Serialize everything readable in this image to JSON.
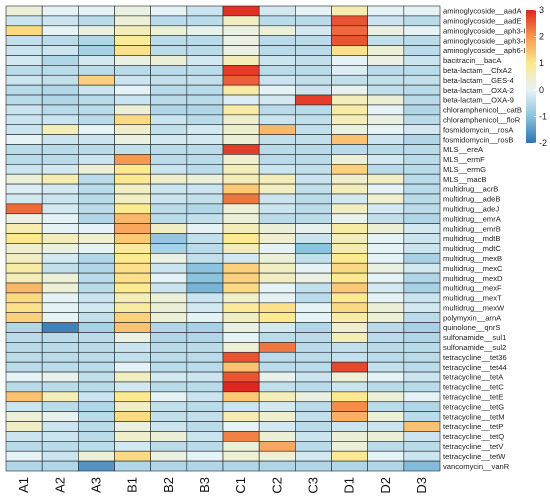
{
  "chart_data": {
    "type": "heatmap",
    "title": "",
    "xlabel": "",
    "ylabel": "",
    "columns": [
      "A1",
      "A2",
      "A3",
      "B1",
      "B2",
      "B3",
      "C1",
      "C2",
      "C3",
      "D1",
      "D2",
      "D3"
    ],
    "rows": [
      "aminoglycoside__aadA",
      "aminoglycoside__aadE",
      "aminoglycoside__aph3-I",
      "aminoglycoside__aph3-III",
      "aminoglycoside__aph6-I",
      "bacitracin__bacA",
      "beta-lactam__CfxA2",
      "beta-lactam__GES-4",
      "beta-lactam__OXA-2",
      "beta-lactam__OXA-9",
      "chloramphenicol__catB",
      "chloramphenicol__floR",
      "fosmidomycin__rosA",
      "fosmidomycin__rosB",
      "MLS__ereA",
      "MLS__ermF",
      "MLS__ermG",
      "MLS__macB",
      "multidrug__acrB",
      "multidrug__adeB",
      "multidrug__adeJ",
      "multidrug__emrA",
      "multidrug__emrB",
      "multidrug__mdtB",
      "multidrug__mdtC",
      "multidrug__mexB",
      "multidrug__mexC",
      "multidrug__mexD",
      "multidrug__mexF",
      "multidrug__mexT",
      "multidrug__mexW",
      "polymyxin__arnA",
      "quinolone__qnrS",
      "sulfonamide__sul1",
      "sulfonamide__sul2",
      "tetracycline__tet36",
      "tetracycline__tet44",
      "tetracycline__tetA",
      "tetracycline__tetC",
      "tetracycline__tetE",
      "tetracycline__tetG",
      "tetracycline__tetM",
      "tetracycline__tetP",
      "tetracycline__tetQ",
      "tetracycline__tetV",
      "tetracycline__tetW",
      "vancomycin__vanR"
    ],
    "values": [
      [
        0.3,
        0.0,
        0.0,
        0.2,
        0.0,
        -0.3,
        2.9,
        -0.2,
        0.0,
        0.7,
        0.0,
        0.0
      ],
      [
        -0.3,
        -0.3,
        -0.5,
        0.3,
        -0.5,
        -0.5,
        0.5,
        -0.5,
        -0.5,
        2.6,
        -0.3,
        -0.5
      ],
      [
        1.2,
        0.0,
        0.2,
        0.6,
        0.3,
        0.1,
        0.2,
        0.3,
        -0.2,
        2.4,
        0.2,
        0.0
      ],
      [
        -0.4,
        -0.5,
        -0.6,
        0.9,
        -0.5,
        -0.5,
        0.2,
        -0.5,
        -0.5,
        2.6,
        -0.4,
        -0.5
      ],
      [
        -0.3,
        -0.3,
        -0.7,
        1.1,
        -0.5,
        -0.5,
        0.2,
        -0.5,
        -0.5,
        1.1,
        0.3,
        -0.5
      ],
      [
        -0.2,
        -0.6,
        -0.2,
        0.2,
        0.3,
        -0.2,
        0.6,
        -0.3,
        -0.4,
        0.0,
        0.2,
        -0.3
      ],
      [
        -0.5,
        -0.5,
        -0.5,
        -0.5,
        -0.5,
        -0.5,
        2.8,
        -0.5,
        -0.5,
        -0.1,
        -0.5,
        -0.5
      ],
      [
        -0.3,
        -0.4,
        1.3,
        -0.3,
        -0.4,
        -0.4,
        2.5,
        -0.3,
        -0.4,
        -0.4,
        -0.4,
        -0.4
      ],
      [
        -0.5,
        -0.6,
        -0.3,
        0.0,
        -0.5,
        -0.5,
        0.8,
        0.0,
        -0.3,
        0.1,
        -0.4,
        -0.5
      ],
      [
        -0.5,
        -0.6,
        -0.5,
        -0.3,
        -0.5,
        -0.5,
        -0.1,
        -0.2,
        2.8,
        0.6,
        0.3,
        -0.5
      ],
      [
        -0.3,
        -0.5,
        -0.5,
        0.3,
        -0.6,
        -0.6,
        0.8,
        -0.5,
        -0.5,
        0.8,
        0.0,
        -0.6
      ],
      [
        -0.3,
        -0.3,
        -0.5,
        1.2,
        -0.3,
        -0.5,
        0.4,
        -0.3,
        -0.4,
        0.6,
        0.2,
        -0.5
      ],
      [
        -0.3,
        0.6,
        0.0,
        0.4,
        -0.4,
        -0.2,
        0.4,
        1.6,
        -0.4,
        0.2,
        0.0,
        -0.2
      ],
      [
        0.0,
        -0.3,
        -0.3,
        0.2,
        -0.2,
        -0.2,
        0.3,
        -0.4,
        -0.4,
        1.5,
        -0.3,
        -0.6
      ],
      [
        -0.5,
        -0.5,
        -0.5,
        -0.4,
        -0.5,
        -0.5,
        2.8,
        -0.5,
        -0.5,
        -0.5,
        -0.5,
        -0.5
      ],
      [
        -0.5,
        -0.5,
        -0.3,
        2.0,
        -0.5,
        -0.5,
        0.4,
        -0.5,
        -0.5,
        0.3,
        -0.2,
        -0.5
      ],
      [
        -0.3,
        -0.2,
        0.3,
        1.0,
        -0.3,
        -0.5,
        0.6,
        -0.3,
        -0.4,
        1.3,
        -0.5,
        -0.5
      ],
      [
        0.3,
        0.7,
        -0.5,
        1.0,
        0.4,
        0.3,
        0.6,
        0.6,
        -0.3,
        0.4,
        0.5,
        -0.5
      ],
      [
        -0.1,
        -0.2,
        -0.5,
        0.5,
        -0.3,
        -0.3,
        1.4,
        0.5,
        -0.4,
        0.6,
        0.0,
        -0.5
      ],
      [
        -0.2,
        -0.3,
        -0.5,
        0.5,
        -0.3,
        -0.4,
        2.3,
        -0.3,
        -0.5,
        -0.2,
        0.4,
        -0.5
      ],
      [
        2.4,
        -0.2,
        -0.5,
        1.0,
        -0.5,
        -0.6,
        0.3,
        -0.3,
        -0.5,
        0.5,
        -0.2,
        -0.5
      ],
      [
        0.2,
        0.0,
        -0.6,
        1.6,
        -0.5,
        -0.4,
        0.3,
        -0.5,
        -0.5,
        0.1,
        -0.4,
        -0.6
      ],
      [
        0.7,
        0.0,
        0.0,
        1.8,
        0.5,
        0.0,
        0.6,
        0.3,
        0.1,
        0.8,
        0.3,
        -0.2
      ],
      [
        1.0,
        0.6,
        0.4,
        1.4,
        -0.9,
        -0.4,
        1.0,
        0.4,
        -0.3,
        0.6,
        0.0,
        -0.3
      ],
      [
        0.4,
        0.2,
        0.0,
        0.9,
        -0.7,
        -0.5,
        0.6,
        0.0,
        -1.0,
        0.7,
        0.0,
        -0.3
      ],
      [
        0.5,
        -0.2,
        -0.6,
        1.0,
        0.2,
        -0.4,
        -0.2,
        0.3,
        -0.4,
        1.0,
        0.0,
        -0.7
      ],
      [
        0.8,
        -0.4,
        -0.6,
        1.1,
        -0.3,
        -1.0,
        1.3,
        0.5,
        0.0,
        1.2,
        0.2,
        -0.2
      ],
      [
        0.6,
        0.3,
        -0.5,
        1.1,
        0.0,
        -1.0,
        1.3,
        0.5,
        0.2,
        1.0,
        0.0,
        -0.6
      ],
      [
        1.6,
        0.3,
        -0.5,
        1.0,
        -0.3,
        -1.2,
        1.2,
        0.0,
        -0.4,
        1.4,
        -0.2,
        -0.7
      ],
      [
        1.2,
        0.0,
        -0.3,
        0.6,
        0.3,
        -0.3,
        0.4,
        0.0,
        -0.5,
        1.0,
        0.0,
        -0.3
      ],
      [
        1.1,
        0.0,
        -0.2,
        0.8,
        0.3,
        -0.2,
        0.9,
        1.1,
        0.0,
        1.2,
        0.3,
        -0.2
      ],
      [
        1.3,
        0.0,
        -0.4,
        1.3,
        0.3,
        0.0,
        0.5,
        1.0,
        0.0,
        0.8,
        0.3,
        -0.5
      ],
      [
        -0.6,
        -1.8,
        -0.7,
        1.5,
        -0.6,
        -0.7,
        0.2,
        -0.2,
        -0.6,
        0.4,
        -0.5,
        -0.7
      ],
      [
        -0.5,
        -0.5,
        -0.5,
        0.2,
        -0.6,
        -0.6,
        0.0,
        -0.5,
        -0.5,
        0.6,
        -0.5,
        -0.6
      ],
      [
        -0.5,
        -0.5,
        -0.5,
        -0.3,
        -0.5,
        -0.5,
        0.3,
        2.3,
        -0.5,
        -0.4,
        -0.5,
        -0.5
      ],
      [
        -0.5,
        -0.5,
        -0.5,
        -0.4,
        -0.5,
        -0.5,
        2.6,
        -0.5,
        -0.5,
        -0.4,
        -0.5,
        -0.5
      ],
      [
        -0.5,
        -0.5,
        -0.5,
        0.0,
        -0.5,
        -0.5,
        1.5,
        -0.5,
        -0.5,
        2.7,
        -0.4,
        -0.5
      ],
      [
        0.0,
        0.1,
        -0.4,
        0.5,
        -0.2,
        -0.3,
        2.6,
        0.1,
        -0.3,
        0.3,
        0.0,
        -0.3
      ],
      [
        -0.5,
        -0.5,
        -0.5,
        -0.2,
        -0.5,
        -0.5,
        3.0,
        -0.4,
        -0.5,
        -0.3,
        -0.5,
        -0.5
      ],
      [
        1.5,
        0.6,
        -0.3,
        1.0,
        0.0,
        -0.3,
        1.4,
        0.6,
        0.2,
        1.0,
        0.3,
        0.0
      ],
      [
        -0.3,
        -0.5,
        -0.6,
        0.5,
        -0.4,
        -0.5,
        -0.3,
        -0.2,
        -0.5,
        2.1,
        -0.5,
        -0.6
      ],
      [
        0.3,
        0.1,
        -0.5,
        1.2,
        -0.4,
        -0.4,
        0.7,
        0.4,
        -0.4,
        1.7,
        0.3,
        -0.5
      ],
      [
        0.5,
        -0.3,
        -0.5,
        0.2,
        -0.3,
        -0.5,
        0.0,
        -0.2,
        -0.5,
        -0.3,
        -0.3,
        1.5
      ],
      [
        -0.3,
        -0.3,
        -0.5,
        0.4,
        0.3,
        -0.3,
        2.2,
        0.3,
        -0.3,
        0.3,
        0.3,
        -0.3
      ],
      [
        -0.5,
        -0.5,
        -0.5,
        -0.2,
        -0.5,
        -0.5,
        0.3,
        1.8,
        -0.5,
        0.3,
        -0.5,
        -0.5
      ],
      [
        0.0,
        -0.3,
        0.3,
        1.2,
        0.2,
        0.0,
        0.3,
        0.3,
        -0.2,
        1.0,
        0.0,
        -0.3
      ],
      [
        -0.6,
        -0.6,
        -1.6,
        -0.6,
        -0.6,
        -0.6,
        -0.6,
        -0.6,
        -0.6,
        -0.6,
        -0.6,
        -1.1
      ]
    ],
    "color_scale": {
      "min": -2,
      "max": 3,
      "ticks": [
        3,
        2,
        1,
        0,
        -1,
        -2
      ],
      "stops": [
        {
          "value": -2,
          "color": "#2d73b4"
        },
        {
          "value": -1,
          "color": "#8cc3de"
        },
        {
          "value": 0,
          "color": "#e5f3f6"
        },
        {
          "value": 1,
          "color": "#fde990"
        },
        {
          "value": 2,
          "color": "#f7984f"
        },
        {
          "value": 3,
          "color": "#e0261e"
        }
      ]
    },
    "legend_position": "top-right",
    "grid": true,
    "cell_border_color": "#222222"
  }
}
